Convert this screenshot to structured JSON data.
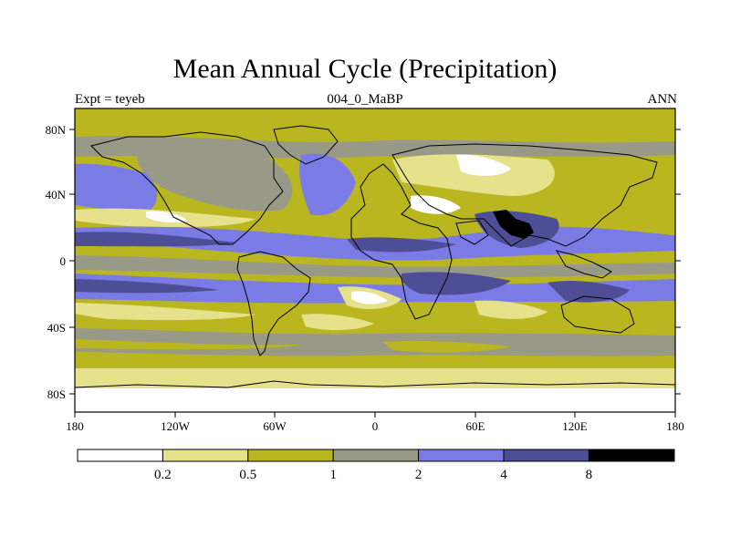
{
  "title": "Mean Annual Cycle (Precipitation)",
  "subtitle_left": "Expt = teyeb",
  "subtitle_center": "004_0_MaBP",
  "subtitle_right": "ANN",
  "lat_ticks": [
    "80N",
    "40N",
    "0",
    "40S",
    "80S"
  ],
  "lon_ticks": [
    "180",
    "120W",
    "60W",
    "0",
    "60E",
    "120E",
    "180"
  ],
  "colorbar": {
    "labels": [
      "0.2",
      "0.5",
      "1",
      "2",
      "4",
      "8"
    ],
    "colors": [
      "#ffffff",
      "#e6e28c",
      "#b9b620",
      "#999988",
      "#7b7be6",
      "#4e4e96",
      "#000000"
    ]
  }
}
